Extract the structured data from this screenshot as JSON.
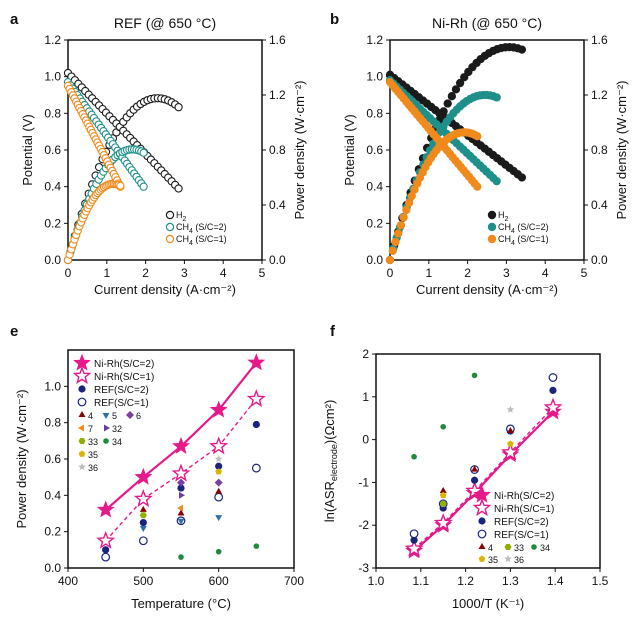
{
  "chart_data": [
    {
      "id": "a",
      "type": "line",
      "panel_label": "a",
      "title": "REF (@ 650 °C)",
      "xlabel": "Current density (A·cm⁻²)",
      "ylabel": "Potential (V)",
      "y2label": "Power density (W·cm⁻²)",
      "xlim": [
        0,
        5
      ],
      "ylim": [
        0,
        1.2
      ],
      "y2lim": [
        0,
        1.6
      ],
      "xticks": [
        "0",
        "1",
        "2",
        "3",
        "4",
        "5"
      ],
      "yticks": [
        "0.0",
        "0.2",
        "0.4",
        "0.6",
        "0.8",
        "1.0",
        "1.2"
      ],
      "y2ticks": [
        "0.0",
        "0.4",
        "0.8",
        "1.2",
        "1.6"
      ],
      "legend_position": "bottom-right",
      "marker_style": "open",
      "series": [
        {
          "name": "H₂",
          "label_main": "H",
          "label_sub": "2",
          "label_tail": "",
          "color": "#1a1a1a",
          "imax": 2.85,
          "ocv": 1.02,
          "vend": 0.39
        },
        {
          "name": "CH₄ (S/C=2)",
          "label_main": "CH",
          "label_sub": "4",
          "label_tail": " (S/C=2)",
          "color": "#1f8f8a",
          "imax": 1.95,
          "ocv": 0.97,
          "vend": 0.4
        },
        {
          "name": "CH₄ (S/C=1)",
          "label_main": "CH",
          "label_sub": "4",
          "label_tail": " (S/C=1)",
          "color": "#f08a1c",
          "imax": 1.35,
          "ocv": 0.95,
          "vend": 0.4
        }
      ]
    },
    {
      "id": "b",
      "type": "line",
      "panel_label": "b",
      "title": "Ni-Rh (@ 650 °C)",
      "xlabel": "Current density (A·cm⁻²)",
      "ylabel": "Potential (V)",
      "y2label": "Power density (W·cm⁻²)",
      "xlim": [
        0,
        5
      ],
      "ylim": [
        0,
        1.2
      ],
      "y2lim": [
        0,
        1.6
      ],
      "xticks": [
        "0",
        "1",
        "2",
        "3",
        "4",
        "5"
      ],
      "yticks": [
        "0.0",
        "0.2",
        "0.4",
        "0.6",
        "0.8",
        "1.0",
        "1.2"
      ],
      "y2ticks": [
        "0.0",
        "0.4",
        "0.8",
        "1.2",
        "1.6"
      ],
      "legend_position": "bottom-right",
      "marker_style": "filled",
      "series": [
        {
          "name": "H₂",
          "label_main": "H",
          "label_sub": "2",
          "label_tail": "",
          "color": "#1a1a1a",
          "imax": 3.4,
          "ocv": 1.01,
          "vend": 0.45
        },
        {
          "name": "CH₄ (S/C=2)",
          "label_main": "CH",
          "label_sub": "4",
          "label_tail": " (S/C=2)",
          "color": "#1f8f8a",
          "imax": 2.75,
          "ocv": 0.98,
          "vend": 0.43
        },
        {
          "name": "CH₄ (S/C=1)",
          "label_main": "CH",
          "label_sub": "4",
          "label_tail": " (S/C=1)",
          "color": "#f08a1c",
          "imax": 2.25,
          "ocv": 0.97,
          "vend": 0.4
        }
      ]
    },
    {
      "id": "e",
      "type": "scatter",
      "panel_label": "e",
      "xlabel": "Temperature (°C)",
      "ylabel": "Power density (W·cm⁻²)",
      "xlim": [
        400,
        700
      ],
      "ylim": [
        0,
        1.2
      ],
      "xticks": [
        "400",
        "500",
        "600",
        "700"
      ],
      "yticks": [
        "0.0",
        "0.2",
        "0.4",
        "0.6",
        "0.8",
        "1.0"
      ],
      "legend_position": "top-left",
      "series": [
        {
          "name": "Ni-Rh(S/C=2)",
          "marker": "star-filled",
          "color": "#e6198a",
          "line": "solid",
          "x": [
            450,
            500,
            550,
            600,
            650
          ],
          "y": [
            0.32,
            0.5,
            0.67,
            0.87,
            1.13
          ]
        },
        {
          "name": "Ni-Rh(S/C=1)",
          "marker": "star-open",
          "color": "#e6198a",
          "line": "dashed",
          "x": [
            450,
            500,
            550,
            600,
            650
          ],
          "y": [
            0.15,
            0.38,
            0.52,
            0.67,
            0.93
          ]
        },
        {
          "name": "REF(S/C=2)",
          "marker": "circle-filled",
          "color": "#1a237e",
          "x": [
            450,
            500,
            550,
            600,
            650
          ],
          "y": [
            0.1,
            0.25,
            0.44,
            0.56,
            0.79
          ]
        },
        {
          "name": "REF(S/C=1)",
          "marker": "circle-open",
          "color": "#1a237e",
          "x": [
            450,
            500,
            550,
            600,
            650
          ],
          "y": [
            0.06,
            0.15,
            0.26,
            0.39,
            0.55
          ]
        },
        {
          "name": "4",
          "marker": "tri-up",
          "color": "#8b0000",
          "x": [
            500,
            550,
            600
          ],
          "y": [
            0.32,
            0.3,
            0.42
          ]
        },
        {
          "name": "5",
          "marker": "tri-down",
          "color": "#2e6fb0",
          "x": [
            500,
            550,
            600
          ],
          "y": [
            0.22,
            0.26,
            0.28
          ]
        },
        {
          "name": "6",
          "marker": "diamond",
          "color": "#7a3fa0",
          "x": [
            550,
            600
          ],
          "y": [
            0.47,
            0.47
          ]
        },
        {
          "name": "7",
          "marker": "tri-left",
          "color": "#f08a1c",
          "x": [
            550
          ],
          "y": [
            0.33
          ]
        },
        {
          "name": "32",
          "marker": "tri-right",
          "color": "#6a3d9a",
          "x": [
            550
          ],
          "y": [
            0.4
          ]
        },
        {
          "name": "33",
          "marker": "hex",
          "color": "#8fb000",
          "x": [
            500
          ],
          "y": [
            0.29
          ]
        },
        {
          "name": "34",
          "marker": "dot",
          "color": "#1e8a3c",
          "x": [
            550,
            600,
            650
          ],
          "y": [
            0.06,
            0.09,
            0.12
          ]
        },
        {
          "name": "35",
          "marker": "pent",
          "color": "#d7b500",
          "x": [
            600
          ],
          "y": [
            0.53
          ]
        },
        {
          "name": "36",
          "marker": "star-small",
          "color": "#bdbdbd",
          "x": [
            600
          ],
          "y": [
            0.6
          ]
        }
      ]
    },
    {
      "id": "f",
      "type": "scatter",
      "panel_label": "f",
      "xlabel": "1000/T (K⁻¹)",
      "ylabel": "ln(ASR electrode)(Ωcm²)",
      "ylabel_parts": {
        "pre": "ln(ASR",
        "sub": "electrode",
        "post": ")(Ωcm²)"
      },
      "xlim": [
        1.0,
        1.5
      ],
      "ylim": [
        -3,
        2
      ],
      "xticks": [
        "1.0",
        "1.1",
        "1.2",
        "1.3",
        "1.4",
        "1.5"
      ],
      "yticks": [
        "-3",
        "-2",
        "-1",
        "0",
        "1",
        "2"
      ],
      "legend_position": "bottom-right",
      "series": [
        {
          "name": "Ni-Rh(S/C=2)",
          "marker": "star-filled",
          "color": "#e6198a",
          "line": "solid",
          "x": [
            1.085,
            1.15,
            1.22,
            1.3,
            1.395
          ],
          "y": [
            -2.6,
            -2.0,
            -1.25,
            -0.35,
            0.65
          ]
        },
        {
          "name": "Ni-Rh(S/C=1)",
          "marker": "star-open",
          "color": "#e6198a",
          "line": "dashed",
          "x": [
            1.085,
            1.15,
            1.22,
            1.3,
            1.395
          ],
          "y": [
            -2.55,
            -1.95,
            -1.2,
            -0.3,
            0.75
          ]
        },
        {
          "name": "REF(S/C=2)",
          "marker": "circle-filled",
          "color": "#1a237e",
          "x": [
            1.085,
            1.15,
            1.22,
            1.3,
            1.395
          ],
          "y": [
            -2.35,
            -1.6,
            -0.95,
            0.2,
            1.15
          ]
        },
        {
          "name": "REF(S/C=1)",
          "marker": "circle-open",
          "color": "#1a237e",
          "x": [
            1.085,
            1.15,
            1.22,
            1.3,
            1.395
          ],
          "y": [
            -2.2,
            -1.5,
            -0.7,
            0.25,
            1.45
          ]
        },
        {
          "name": "4",
          "marker": "tri-up",
          "color": "#8b0000",
          "x": [
            1.15,
            1.22,
            1.3
          ],
          "y": [
            -1.2,
            -0.7,
            0.2
          ]
        },
        {
          "name": "33",
          "marker": "hex",
          "color": "#8fb000",
          "x": [
            1.15
          ],
          "y": [
            -1.5
          ]
        },
        {
          "name": "34",
          "marker": "dot",
          "color": "#1e8a3c",
          "x": [
            1.085,
            1.15,
            1.22
          ],
          "y": [
            -0.4,
            0.3,
            1.5
          ]
        },
        {
          "name": "35",
          "marker": "pent",
          "color": "#d7b500",
          "x": [
            1.15,
            1.3
          ],
          "y": [
            -1.3,
            -0.1
          ]
        },
        {
          "name": "36",
          "marker": "star-small",
          "color": "#bdbdbd",
          "x": [
            1.3
          ],
          "y": [
            0.7
          ]
        }
      ]
    }
  ]
}
